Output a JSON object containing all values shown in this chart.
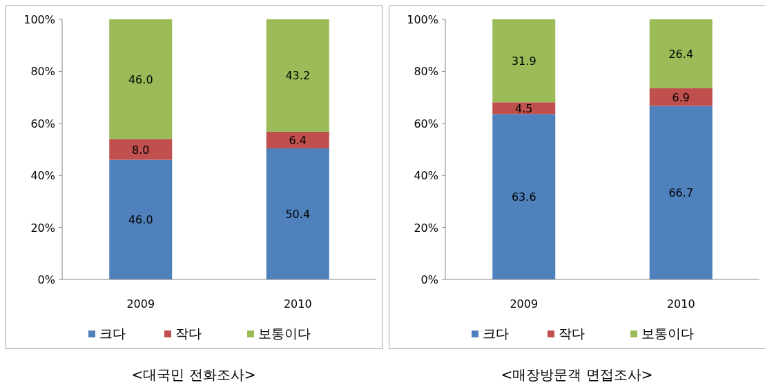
{
  "chart_data": [
    {
      "type": "bar",
      "title": "<대국민 전화조사>",
      "stacked": true,
      "categories": [
        "2009",
        "2010"
      ],
      "ylim": [
        0,
        100
      ],
      "yticks": [
        {
          "value": 0,
          "label": "0%"
        },
        {
          "value": 20,
          "label": "20%"
        },
        {
          "value": 40,
          "label": "40%"
        },
        {
          "value": 60,
          "label": "60%"
        },
        {
          "value": 80,
          "label": "80%"
        },
        {
          "value": 100,
          "label": "100%"
        }
      ],
      "legend": "bottom",
      "grid": false,
      "series": [
        {
          "name": "크다",
          "color": "#4f81bd",
          "values": [
            46.0,
            50.4
          ],
          "value_labels": [
            "46.0",
            "50.4"
          ]
        },
        {
          "name": "작다",
          "color": "#c0504d",
          "values": [
            8.0,
            6.4
          ],
          "value_labels": [
            "8.0",
            "6.4"
          ]
        },
        {
          "name": "보통이다",
          "color": "#9bbb59",
          "values": [
            46.0,
            43.2
          ],
          "value_labels": [
            "46.0",
            "43.2"
          ]
        }
      ]
    },
    {
      "type": "bar",
      "title": "<매장방문객 면접조사>",
      "stacked": true,
      "categories": [
        "2009",
        "2010"
      ],
      "ylim": [
        0,
        100
      ],
      "yticks": [
        {
          "value": 0,
          "label": "0%"
        },
        {
          "value": 20,
          "label": "20%"
        },
        {
          "value": 40,
          "label": "40%"
        },
        {
          "value": 60,
          "label": "60%"
        },
        {
          "value": 80,
          "label": "80%"
        },
        {
          "value": 100,
          "label": "100%"
        }
      ],
      "legend": "bottom",
      "grid": false,
      "series": [
        {
          "name": "크다",
          "color": "#4f81bd",
          "values": [
            63.6,
            66.7
          ],
          "value_labels": [
            "63.6",
            "66.7"
          ]
        },
        {
          "name": "작다",
          "color": "#c0504d",
          "values": [
            4.5,
            6.9
          ],
          "value_labels": [
            "4.5",
            "6.9"
          ]
        },
        {
          "name": "보통이다",
          "color": "#9bbb59",
          "values": [
            31.9,
            26.4
          ],
          "value_labels": [
            "31.9",
            "26.4"
          ]
        }
      ]
    }
  ]
}
